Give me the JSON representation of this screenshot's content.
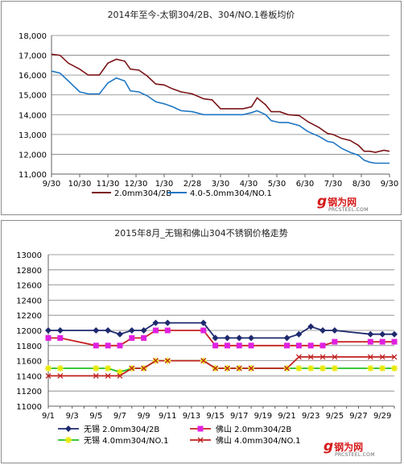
{
  "chart_data": [
    {
      "type": "line",
      "title": "2014年至今-太钢304/2B、304/NO.1卷板均价",
      "categories": [
        "9/30",
        "10/30",
        "11/30",
        "12/30",
        "1/30",
        "2/28",
        "3/30",
        "4/30",
        "5/30",
        "6/30",
        "7/30",
        "8/30",
        "9/30"
      ],
      "ylim": [
        11000,
        18000
      ],
      "yticks": [
        "11,000",
        "12,000",
        "13,000",
        "14,000",
        "15,000",
        "16,000",
        "17,000",
        "18,000"
      ],
      "grid": "horizontal",
      "legend_position": "bottom",
      "series": [
        {
          "name": "2.0mm304/2B",
          "color": "#7b1416",
          "points": [
            [
              0,
              17050
            ],
            [
              0.3,
              17000
            ],
            [
              0.6,
              16600
            ],
            [
              1,
              16300
            ],
            [
              1.3,
              16000
            ],
            [
              1.7,
              16000
            ],
            [
              2,
              16600
            ],
            [
              2.3,
              16800
            ],
            [
              2.6,
              16700
            ],
            [
              2.8,
              16300
            ],
            [
              3.1,
              16250
            ],
            [
              3.4,
              15950
            ],
            [
              3.7,
              15550
            ],
            [
              4,
              15500
            ],
            [
              4.3,
              15300
            ],
            [
              4.6,
              15150
            ],
            [
              5,
              15050
            ],
            [
              5.4,
              14800
            ],
            [
              5.7,
              14750
            ],
            [
              6,
              14300
            ],
            [
              6.4,
              14300
            ],
            [
              6.8,
              14300
            ],
            [
              7.1,
              14400
            ],
            [
              7.3,
              14850
            ],
            [
              7.6,
              14500
            ],
            [
              7.8,
              14150
            ],
            [
              8.1,
              14150
            ],
            [
              8.4,
              14000
            ],
            [
              8.8,
              13950
            ],
            [
              9.1,
              13650
            ],
            [
              9.5,
              13350
            ],
            [
              9.8,
              13050
            ],
            [
              10,
              13000
            ],
            [
              10.3,
              12800
            ],
            [
              10.6,
              12700
            ],
            [
              10.9,
              12450
            ],
            [
              11.1,
              12150
            ],
            [
              11.3,
              12150
            ],
            [
              11.5,
              12100
            ],
            [
              11.8,
              12200
            ],
            [
              12,
              12150
            ]
          ]
        },
        {
          "name": "4.0-5.0mm304/NO.1",
          "color": "#1f77c4",
          "points": [
            [
              0,
              16200
            ],
            [
              0.3,
              16100
            ],
            [
              0.6,
              15700
            ],
            [
              1,
              15150
            ],
            [
              1.3,
              15050
            ],
            [
              1.7,
              15050
            ],
            [
              2,
              15600
            ],
            [
              2.3,
              15850
            ],
            [
              2.6,
              15700
            ],
            [
              2.8,
              15200
            ],
            [
              3.1,
              15150
            ],
            [
              3.4,
              14950
            ],
            [
              3.7,
              14650
            ],
            [
              4,
              14550
            ],
            [
              4.3,
              14400
            ],
            [
              4.6,
              14200
            ],
            [
              5,
              14150
            ],
            [
              5.4,
              14000
            ],
            [
              6,
              14000
            ],
            [
              6.4,
              14000
            ],
            [
              6.8,
              14000
            ],
            [
              7.1,
              14100
            ],
            [
              7.3,
              14200
            ],
            [
              7.6,
              14000
            ],
            [
              7.8,
              13700
            ],
            [
              8.1,
              13600
            ],
            [
              8.4,
              13600
            ],
            [
              8.8,
              13450
            ],
            [
              9.1,
              13150
            ],
            [
              9.5,
              12900
            ],
            [
              9.8,
              12650
            ],
            [
              10,
              12600
            ],
            [
              10.3,
              12300
            ],
            [
              10.6,
              12100
            ],
            [
              10.9,
              11950
            ],
            [
              11.1,
              11700
            ],
            [
              11.3,
              11600
            ],
            [
              11.5,
              11550
            ],
            [
              11.8,
              11550
            ],
            [
              12,
              11550
            ]
          ]
        }
      ]
    },
    {
      "type": "line",
      "title": "2015年8月_无锡和佛山304不锈钢价格走势",
      "categories": [
        "9/1",
        "9/3",
        "9/5",
        "9/7",
        "9/9",
        "9/11",
        "9/13",
        "9/15",
        "9/17",
        "9/19",
        "9/21",
        "9/23",
        "9/25",
        "9/27",
        "9/29"
      ],
      "ylim": [
        11000,
        13000
      ],
      "yticks": [
        "11000",
        "11200",
        "11400",
        "11600",
        "11800",
        "12000",
        "12200",
        "12400",
        "12600",
        "12800",
        "13000"
      ],
      "grid": "horizontal",
      "legend_position": "bottom",
      "series": [
        {
          "name": "无锡 2.0mm304/2B",
          "color": "#1f2a6e",
          "marker": "diamond",
          "points": [
            [
              1,
              12000
            ],
            [
              2,
              12000
            ],
            [
              5,
              12000
            ],
            [
              6,
              12000
            ],
            [
              7,
              11950
            ],
            [
              8,
              12000
            ],
            [
              9,
              12000
            ],
            [
              10,
              12100
            ],
            [
              11,
              12100
            ],
            [
              14,
              12100
            ],
            [
              15,
              11900
            ],
            [
              16,
              11900
            ],
            [
              17,
              11900
            ],
            [
              18,
              11900
            ],
            [
              21,
              11900
            ],
            [
              22,
              11950
            ],
            [
              23,
              12050
            ],
            [
              24,
              12000
            ],
            [
              25,
              12000
            ],
            [
              28,
              11950
            ],
            [
              29,
              11950
            ],
            [
              30,
              11950
            ]
          ]
        },
        {
          "name": "佛山 2.0mm304/2B",
          "color": "#e020e0",
          "line_color": "#c82020",
          "marker": "square",
          "points": [
            [
              1,
              11900
            ],
            [
              2,
              11900
            ],
            [
              5,
              11800
            ],
            [
              6,
              11800
            ],
            [
              7,
              11800
            ],
            [
              8,
              11900
            ],
            [
              9,
              11900
            ],
            [
              10,
              12000
            ],
            [
              11,
              12000
            ],
            [
              14,
              12000
            ],
            [
              15,
              11800
            ],
            [
              16,
              11800
            ],
            [
              17,
              11800
            ],
            [
              18,
              11800
            ],
            [
              21,
              11800
            ],
            [
              22,
              11800
            ],
            [
              23,
              11800
            ],
            [
              24,
              11800
            ],
            [
              25,
              11850
            ],
            [
              28,
              11850
            ],
            [
              29,
              11850
            ],
            [
              30,
              11850
            ]
          ]
        },
        {
          "name": "无锡 4.0mm304/NO.1",
          "color": "#e8e800",
          "line_color": "#20c020",
          "marker": "star",
          "points": [
            [
              1,
              11500
            ],
            [
              2,
              11500
            ],
            [
              5,
              11500
            ],
            [
              6,
              11500
            ],
            [
              7,
              11450
            ],
            [
              8,
              11500
            ],
            [
              9,
              11500
            ],
            [
              10,
              11600
            ],
            [
              11,
              11600
            ],
            [
              14,
              11600
            ],
            [
              15,
              11500
            ],
            [
              16,
              11500
            ],
            [
              17,
              11500
            ],
            [
              18,
              11500
            ],
            [
              21,
              11500
            ],
            [
              22,
              11500
            ],
            [
              23,
              11500
            ],
            [
              24,
              11500
            ],
            [
              25,
              11500
            ],
            [
              28,
              11500
            ],
            [
              29,
              11500
            ],
            [
              30,
              11500
            ]
          ]
        },
        {
          "name": "佛山 4.0mm304/NO.1",
          "color": "#c02020",
          "marker": "x",
          "points": [
            [
              1,
              11400
            ],
            [
              2,
              11400
            ],
            [
              5,
              11400
            ],
            [
              6,
              11400
            ],
            [
              7,
              11400
            ],
            [
              8,
              11500
            ],
            [
              9,
              11500
            ],
            [
              10,
              11600
            ],
            [
              11,
              11600
            ],
            [
              14,
              11600
            ],
            [
              15,
              11500
            ],
            [
              16,
              11500
            ],
            [
              17,
              11500
            ],
            [
              18,
              11500
            ],
            [
              21,
              11500
            ],
            [
              22,
              11650
            ],
            [
              23,
              11650
            ],
            [
              24,
              11650
            ],
            [
              25,
              11650
            ],
            [
              28,
              11650
            ],
            [
              29,
              11650
            ],
            [
              30,
              11650
            ]
          ]
        }
      ]
    }
  ],
  "logo": {
    "brand": "钢为网",
    "site": "PRCSTEEL.COM",
    "glyph": "g"
  }
}
